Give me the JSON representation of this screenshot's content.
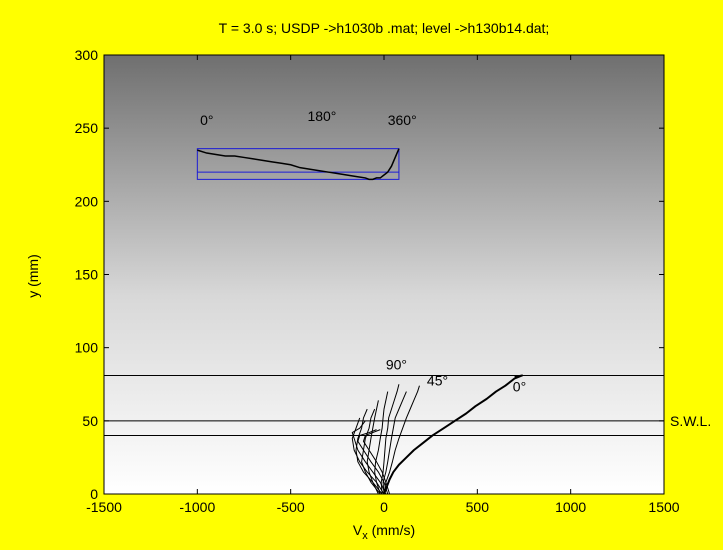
{
  "chart_data": {
    "type": "line",
    "title": "T = 3.0 s; USDP ->h1030b .mat; level ->h130b14.dat;",
    "xlabel_main": "V",
    "xlabel_sub": "x",
    "xlabel_rest": " (mm/s)",
    "ylabel": "y (mm)",
    "xlim": [
      -1500,
      1500
    ],
    "ylim": [
      0,
      300
    ],
    "xticks": [
      -1500,
      -1000,
      -500,
      0,
      500,
      1000,
      1500
    ],
    "yticks": [
      0,
      50,
      100,
      150,
      200,
      250,
      300
    ],
    "grid": false,
    "background": "vertical gradient, white at bottom to dark grey at top",
    "hlines": [
      {
        "y": 81,
        "label": ""
      },
      {
        "y": 50,
        "label": "S.W.L."
      },
      {
        "y": 40,
        "label": ""
      }
    ],
    "inset": {
      "box": {
        "x0": -1000,
        "x1": 80,
        "y0": 215,
        "y1": 236
      },
      "midline_y": 220,
      "labels": [
        {
          "text": "0°",
          "x": -985,
          "y": 252
        },
        {
          "text": "180°",
          "x": -410,
          "y": 255
        },
        {
          "text": "360°",
          "x": 20,
          "y": 252
        }
      ],
      "x": [
        -1000,
        -950,
        -900,
        -850,
        -800,
        -750,
        -700,
        -650,
        -600,
        -550,
        -500,
        -450,
        -400,
        -350,
        -300,
        -250,
        -200,
        -150,
        -100,
        -80,
        -60,
        -40,
        -20,
        0,
        20,
        40,
        60,
        80
      ],
      "y": [
        235,
        233,
        232,
        231,
        231,
        230,
        229,
        228,
        227,
        226,
        225,
        223,
        222,
        221,
        220,
        219,
        218,
        217,
        216,
        215,
        215,
        216,
        216,
        218,
        220,
        224,
        230,
        236
      ]
    },
    "profile_labels": [
      {
        "text": "90°",
        "x": 10,
        "y": 85
      },
      {
        "text": "45°",
        "x": 230,
        "y": 74
      },
      {
        "text": "0°",
        "x": 690,
        "y": 70
      }
    ],
    "series": [
      {
        "width": 2,
        "points": [
          [
            0,
            0
          ],
          [
            15,
            5
          ],
          [
            30,
            10
          ],
          [
            50,
            15
          ],
          [
            80,
            20
          ],
          [
            120,
            25
          ],
          [
            160,
            30
          ],
          [
            210,
            35
          ],
          [
            260,
            40
          ],
          [
            320,
            45
          ],
          [
            380,
            50
          ],
          [
            440,
            55
          ],
          [
            490,
            60
          ],
          [
            550,
            65
          ],
          [
            600,
            70
          ],
          [
            650,
            74
          ],
          [
            700,
            79
          ],
          [
            740,
            81
          ],
          [
            700,
            80
          ]
        ]
      },
      {
        "width": 1,
        "points": [
          [
            0,
            0
          ],
          [
            10,
            8
          ],
          [
            30,
            15
          ],
          [
            45,
            22
          ],
          [
            60,
            30
          ],
          [
            80,
            38
          ],
          [
            100,
            45
          ],
          [
            120,
            52
          ],
          [
            140,
            58
          ],
          [
            160,
            64
          ],
          [
            180,
            70
          ],
          [
            190,
            74
          ]
        ]
      },
      {
        "width": 1,
        "points": [
          [
            0,
            0
          ],
          [
            -5,
            8
          ],
          [
            10,
            15
          ],
          [
            20,
            22
          ],
          [
            30,
            30
          ],
          [
            40,
            38
          ],
          [
            50,
            45
          ],
          [
            60,
            52
          ],
          [
            80,
            58
          ],
          [
            100,
            64
          ],
          [
            120,
            70
          ]
        ]
      },
      {
        "width": 1,
        "points": [
          [
            -10,
            0
          ],
          [
            -15,
            8
          ],
          [
            -5,
            15
          ],
          [
            0,
            22
          ],
          [
            5,
            30
          ],
          [
            10,
            38
          ],
          [
            20,
            45
          ],
          [
            25,
            52
          ],
          [
            40,
            58
          ],
          [
            55,
            64
          ],
          [
            70,
            70
          ],
          [
            80,
            75
          ]
        ]
      },
      {
        "width": 1,
        "points": [
          [
            -20,
            0
          ],
          [
            -40,
            8
          ],
          [
            -50,
            15
          ],
          [
            -45,
            22
          ],
          [
            -30,
            30
          ],
          [
            -20,
            38
          ],
          [
            -10,
            45
          ],
          [
            -5,
            52
          ],
          [
            0,
            58
          ],
          [
            10,
            64
          ],
          [
            20,
            70
          ]
        ]
      },
      {
        "width": 1,
        "points": [
          [
            -30,
            0
          ],
          [
            -60,
            8
          ],
          [
            -80,
            15
          ],
          [
            -90,
            22
          ],
          [
            -80,
            30
          ],
          [
            -70,
            38
          ],
          [
            -60,
            45
          ],
          [
            -50,
            52
          ],
          [
            -40,
            58
          ],
          [
            -30,
            64
          ]
        ]
      },
      {
        "width": 1,
        "points": [
          [
            -20,
            0
          ],
          [
            -70,
            8
          ],
          [
            -100,
            15
          ],
          [
            -120,
            22
          ],
          [
            -110,
            30
          ],
          [
            -100,
            38
          ],
          [
            -80,
            45
          ],
          [
            -70,
            52
          ],
          [
            -50,
            58
          ]
        ]
      },
      {
        "width": 1,
        "points": [
          [
            -10,
            0
          ],
          [
            -60,
            8
          ],
          [
            -110,
            15
          ],
          [
            -140,
            22
          ],
          [
            -150,
            30
          ],
          [
            -140,
            38
          ],
          [
            -120,
            45
          ],
          [
            -110,
            52
          ],
          [
            -90,
            58
          ]
        ]
      },
      {
        "width": 1,
        "points": [
          [
            0,
            0
          ],
          [
            -40,
            8
          ],
          [
            -90,
            15
          ],
          [
            -130,
            22
          ],
          [
            -160,
            30
          ],
          [
            -170,
            38
          ],
          [
            -150,
            45
          ],
          [
            -130,
            52
          ]
        ]
      },
      {
        "width": 1,
        "points": [
          [
            10,
            0
          ],
          [
            -20,
            8
          ],
          [
            -60,
            15
          ],
          [
            -100,
            22
          ],
          [
            -140,
            30
          ],
          [
            -160,
            38
          ],
          [
            -170,
            42
          ],
          [
            -130,
            45
          ],
          [
            -100,
            50
          ]
        ]
      },
      {
        "width": 1,
        "points": [
          [
            20,
            0
          ],
          [
            0,
            8
          ],
          [
            -30,
            15
          ],
          [
            -70,
            22
          ],
          [
            -110,
            30
          ],
          [
            -140,
            36
          ],
          [
            -130,
            40
          ],
          [
            -80,
            42
          ],
          [
            -40,
            44
          ]
        ]
      },
      {
        "width": 1,
        "points": [
          [
            30,
            0
          ],
          [
            10,
            8
          ],
          [
            -10,
            15
          ],
          [
            -40,
            22
          ],
          [
            -80,
            30
          ],
          [
            -110,
            36
          ],
          [
            -100,
            40
          ],
          [
            -60,
            42
          ],
          [
            -20,
            44
          ]
        ]
      }
    ]
  }
}
